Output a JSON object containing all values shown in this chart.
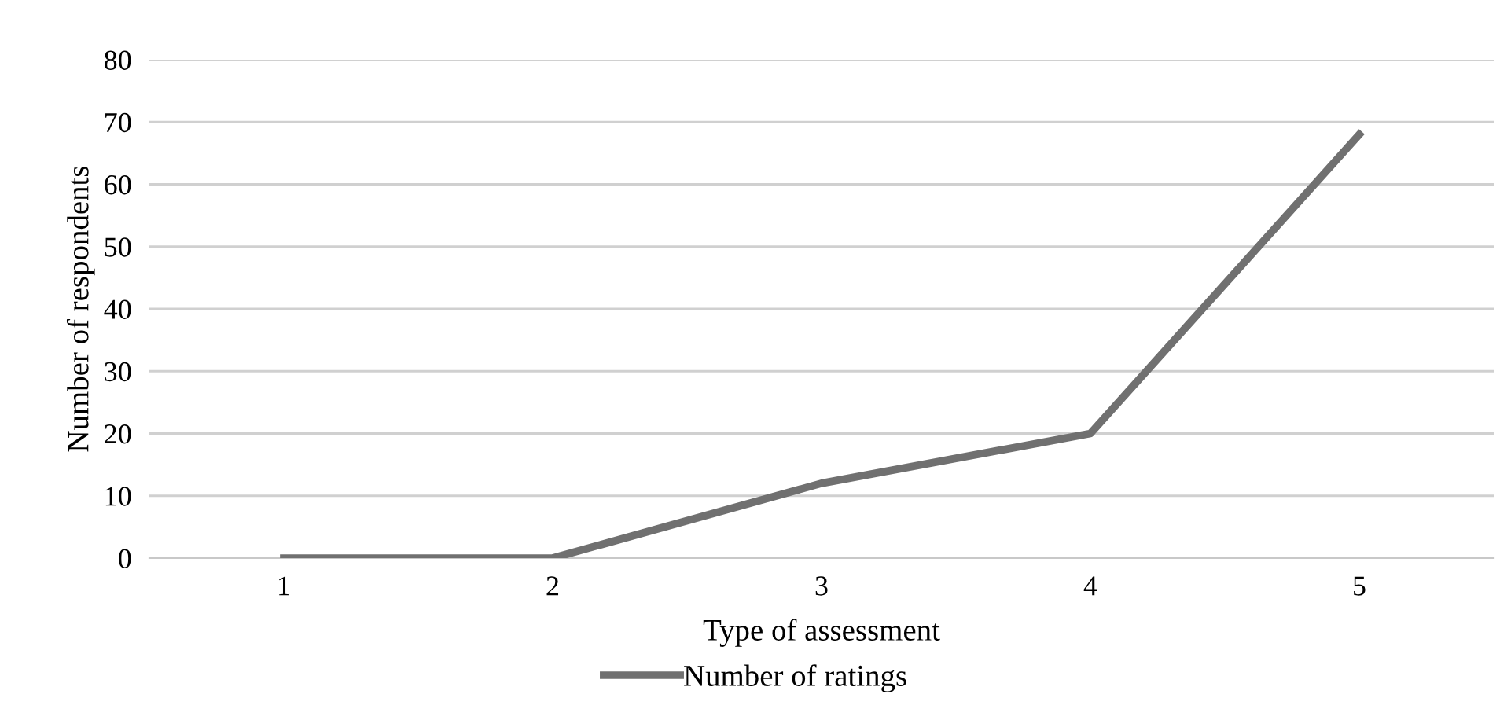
{
  "chart_data": {
    "type": "line",
    "xlabel": "Type of assessment",
    "ylabel": "Number of respondents",
    "categories": [
      "1",
      "2",
      "3",
      "4",
      "5"
    ],
    "series": [
      {
        "name": "Number of ratings",
        "color": "#707070",
        "values": [
          0,
          0,
          12,
          20,
          68
        ]
      }
    ],
    "ylim": [
      0,
      80
    ],
    "yticks": [
      0,
      10,
      20,
      30,
      40,
      50,
      60,
      70,
      80
    ],
    "grid": "y",
    "legend": "bottom",
    "marker": "none",
    "line_style": "solid"
  }
}
